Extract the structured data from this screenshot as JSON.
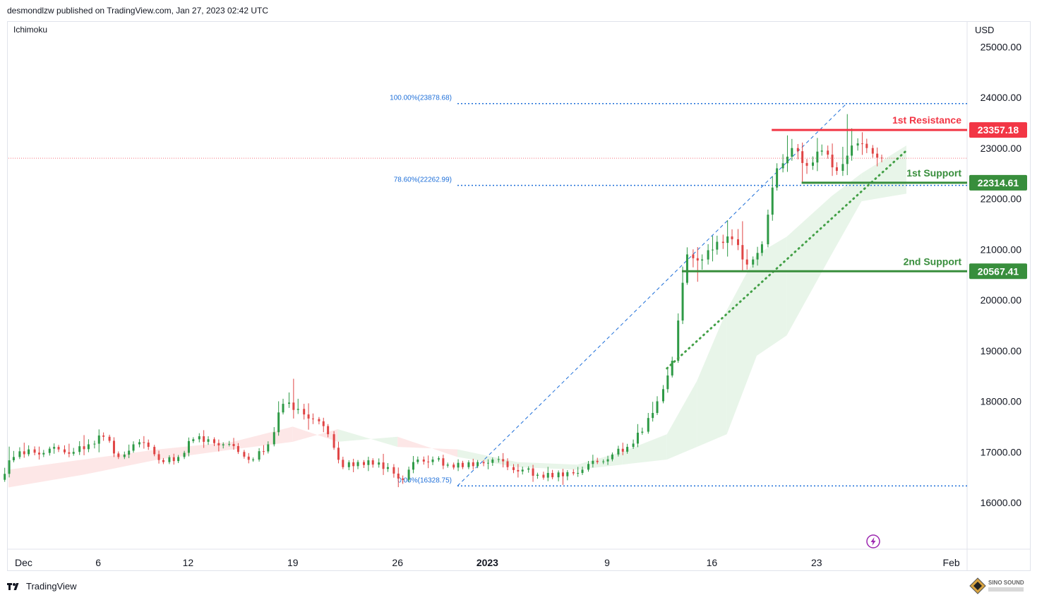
{
  "header": {
    "publisher_line": "desmondlzw published on TradingView.com, Jan 27, 2023 02:42 UTC"
  },
  "indicator": {
    "label": "Ichimoku"
  },
  "currency": "USD",
  "footer": {
    "brand": "TradingView",
    "watermark_text": "SINO SOUND"
  },
  "icons": {
    "brand_logo": "tradingview-logo-icon",
    "lightning": "lightning-icon"
  },
  "colors": {
    "up_candle": "#26a69a",
    "up_candle_chart": "#2e9a46",
    "down_candle": "#e04545",
    "resistance": "#f23645",
    "support": "#388e3c",
    "fib_line": "#1e6fd9",
    "cloud_bull": "#e8f5e9",
    "cloud_bear": "#fde7e7"
  },
  "chart_data": {
    "type": "candlestick",
    "title": "",
    "y_axis": {
      "unit": "USD",
      "ticks": [
        "25000.00",
        "24000.00",
        "23000.00",
        "22000.00",
        "21000.00",
        "20000.00",
        "19000.00",
        "18000.00",
        "17000.00",
        "16000.00"
      ],
      "tick_values": [
        25000,
        24000,
        23000,
        22000,
        21000,
        20000,
        19000,
        18000,
        17000,
        16000
      ],
      "range": [
        15000,
        25800
      ]
    },
    "x_axis": {
      "ticks": [
        "Dec",
        "6",
        "12",
        "19",
        "26",
        "2023",
        "9",
        "16",
        "23",
        "Feb"
      ],
      "tick_dates": [
        "2022-12-01",
        "2022-12-06",
        "2022-12-12",
        "2022-12-19",
        "2022-12-26",
        "2023-01-01",
        "2023-01-09",
        "2023-01-16",
        "2023-01-23",
        "2023-02-01"
      ],
      "range": [
        "2022-11-30",
        "2023-02-01"
      ],
      "bold_tick": "2023"
    },
    "levels": [
      {
        "name": "1st Resistance",
        "value": 23357.18,
        "label": "23357.18",
        "kind": "resistance",
        "from": "2023-01-20"
      },
      {
        "name": "1st Support",
        "value": 22314.61,
        "label": "22314.61",
        "kind": "support",
        "from": "2023-01-22"
      },
      {
        "name": "2nd Support",
        "value": 20567.41,
        "label": "20567.41",
        "kind": "support",
        "from": "2023-01-14"
      }
    ],
    "fibonacci": [
      {
        "label": "100.00%(23878.68)",
        "value": 23878.68
      },
      {
        "label": "78.60%(22262.99)",
        "value": 22262.99
      },
      {
        "label": "0.00%(16328.75)",
        "value": 16328.75
      }
    ],
    "fib_start": "2022-12-30",
    "fib_trend": {
      "from": [
        "2022-12-30",
        16328.75
      ],
      "to": [
        "2023-01-25",
        23878.68
      ]
    },
    "trendline": {
      "from": [
        "2023-01-13",
        18650
      ],
      "to": [
        "2023-01-29",
        22950
      ]
    },
    "current_price": 22800,
    "ohlc": [
      [
        "2022-11-30",
        16450,
        17150,
        16400,
        16900
      ],
      [
        "2022-12-01",
        16900,
        17200,
        16850,
        17050
      ],
      [
        "2022-12-02",
        17050,
        17150,
        16900,
        16980
      ],
      [
        "2022-12-03",
        16980,
        17100,
        16900,
        17050
      ],
      [
        "2022-12-04",
        17050,
        17200,
        16950,
        17000
      ],
      [
        "2022-12-05",
        17000,
        17350,
        16900,
        17150
      ],
      [
        "2022-12-06",
        17150,
        17400,
        17000,
        17300
      ],
      [
        "2022-12-07",
        17300,
        17350,
        16850,
        16900
      ],
      [
        "2022-12-08",
        16900,
        17250,
        16850,
        17150
      ],
      [
        "2022-12-09",
        17150,
        17250,
        17000,
        17100
      ],
      [
        "2022-12-10",
        17100,
        17150,
        16750,
        16800
      ],
      [
        "2022-12-11",
        16800,
        16950,
        16750,
        16900
      ],
      [
        "2022-12-12",
        16900,
        17300,
        16850,
        17250
      ],
      [
        "2022-12-13",
        17250,
        17350,
        17150,
        17250
      ],
      [
        "2022-12-14",
        17250,
        17300,
        17050,
        17150
      ],
      [
        "2022-12-15",
        17150,
        17250,
        16950,
        17000
      ],
      [
        "2022-12-16",
        17000,
        17050,
        16800,
        16850
      ],
      [
        "2022-12-17",
        16850,
        17250,
        16800,
        17150
      ],
      [
        "2022-12-18",
        17150,
        18150,
        17100,
        17950
      ],
      [
        "2022-12-19",
        17950,
        18400,
        17700,
        17850
      ],
      [
        "2022-12-20",
        17850,
        18050,
        17450,
        17650
      ],
      [
        "2022-12-21",
        17650,
        17700,
        17250,
        17350
      ],
      [
        "2022-12-22",
        17350,
        17450,
        16650,
        16700
      ],
      [
        "2022-12-23",
        16700,
        16850,
        16600,
        16800
      ],
      [
        "2022-12-24",
        16800,
        16850,
        16650,
        16750
      ],
      [
        "2022-12-25",
        16750,
        16900,
        16600,
        16700
      ],
      [
        "2022-12-26",
        16700,
        16800,
        16300,
        16450
      ],
      [
        "2022-12-27",
        16450,
        16950,
        16400,
        16850
      ],
      [
        "2022-12-28",
        16850,
        16950,
        16750,
        16850
      ],
      [
        "2022-12-29",
        16850,
        16900,
        16700,
        16750
      ],
      [
        "2022-12-30",
        16750,
        16800,
        16650,
        16700
      ],
      [
        "2022-12-31",
        16700,
        16850,
        16650,
        16800
      ],
      [
        "2023-01-01",
        16800,
        16900,
        16700,
        16850
      ],
      [
        "2023-01-02",
        16850,
        16950,
        16600,
        16700
      ],
      [
        "2023-01-03",
        16700,
        16800,
        16550,
        16650
      ],
      [
        "2023-01-04",
        16650,
        16700,
        16450,
        16550
      ],
      [
        "2023-01-05",
        16550,
        16650,
        16450,
        16500
      ],
      [
        "2023-01-06",
        16500,
        16650,
        16350,
        16600
      ],
      [
        "2023-01-07",
        16600,
        16750,
        16550,
        16650
      ],
      [
        "2023-01-08",
        16650,
        16900,
        16600,
        16800
      ],
      [
        "2023-01-09",
        16800,
        17000,
        16750,
        16950
      ],
      [
        "2023-01-10",
        16950,
        17200,
        16900,
        17100
      ],
      [
        "2023-01-11",
        17100,
        17550,
        17050,
        17400
      ],
      [
        "2023-01-12",
        17400,
        18200,
        17350,
        18000
      ],
      [
        "2023-01-13",
        18000,
        18950,
        17950,
        18800
      ],
      [
        "2023-01-14",
        18800,
        21200,
        18750,
        20900
      ],
      [
        "2023-01-15",
        20900,
        21100,
        20400,
        20800
      ],
      [
        "2023-01-16",
        20800,
        21400,
        20600,
        21150
      ],
      [
        "2023-01-17",
        21150,
        21500,
        20900,
        21200
      ],
      [
        "2023-01-18",
        21200,
        21650,
        20500,
        20700
      ],
      [
        "2023-01-19",
        20700,
        21200,
        20600,
        21100
      ],
      [
        "2023-01-20",
        21100,
        22800,
        21000,
        22600
      ],
      [
        "2023-01-21",
        22600,
        23400,
        22450,
        23000
      ],
      [
        "2023-01-22",
        23000,
        23150,
        22300,
        22650
      ],
      [
        "2023-01-23",
        22650,
        23200,
        22500,
        22950
      ],
      [
        "2023-01-24",
        22950,
        23150,
        22400,
        22550
      ],
      [
        "2023-01-25",
        22550,
        23850,
        22350,
        23050
      ],
      [
        "2023-01-26",
        23050,
        23250,
        22800,
        23000
      ],
      [
        "2023-01-27",
        23000,
        23100,
        22650,
        22800
      ]
    ],
    "cloud": [
      {
        "date": "2022-11-30",
        "a": 16300,
        "b": 16650
      },
      {
        "date": "2022-12-05",
        "a": 16550,
        "b": 16850
      },
      {
        "date": "2022-12-10",
        "a": 16850,
        "b": 17050
      },
      {
        "date": "2022-12-15",
        "a": 17050,
        "b": 17200
      },
      {
        "date": "2022-12-19",
        "a": 17200,
        "b": 17500
      },
      {
        "date": "2022-12-22",
        "a": 17450,
        "b": 17200
      },
      {
        "date": "2022-12-26",
        "a": 17100,
        "b": 17300
      },
      {
        "date": "2022-12-30",
        "a": 17050,
        "b": 16900
      },
      {
        "date": "2023-01-03",
        "a": 16800,
        "b": 16700
      },
      {
        "date": "2023-01-07",
        "a": 16750,
        "b": 16650
      },
      {
        "date": "2023-01-10",
        "a": 17000,
        "b": 16750
      },
      {
        "date": "2023-01-13",
        "a": 17350,
        "b": 16850
      },
      {
        "date": "2023-01-15",
        "a": 18400,
        "b": 17100
      },
      {
        "date": "2023-01-17",
        "a": 19800,
        "b": 17350
      },
      {
        "date": "2023-01-19",
        "a": 20900,
        "b": 18900
      },
      {
        "date": "2023-01-21",
        "a": 21250,
        "b": 19300
      },
      {
        "date": "2023-01-24",
        "a": 22050,
        "b": 20900
      },
      {
        "date": "2023-01-26",
        "a": 22500,
        "b": 21950
      },
      {
        "date": "2023-01-29",
        "a": 23050,
        "b": 22100
      }
    ]
  }
}
